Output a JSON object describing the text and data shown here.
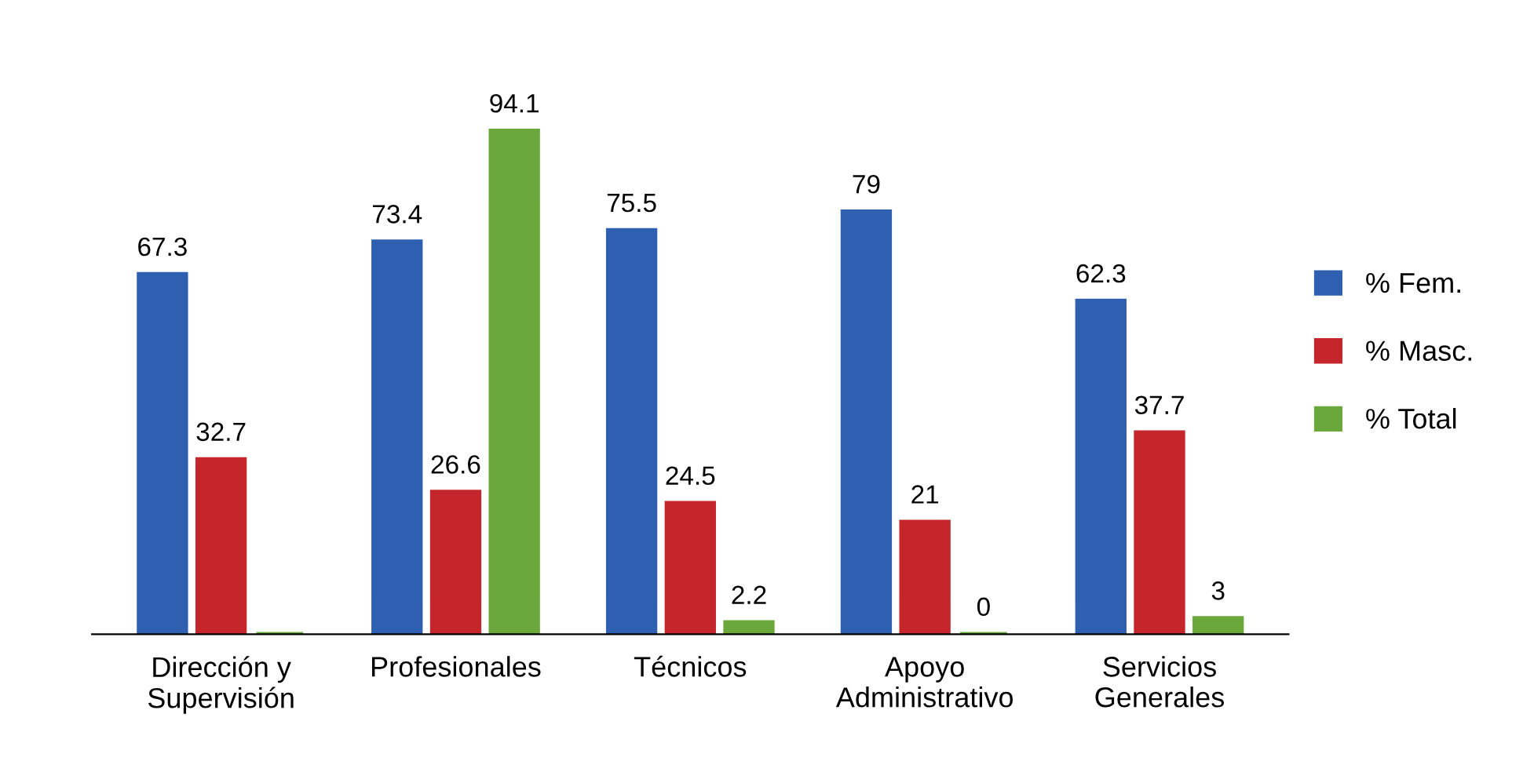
{
  "chart_data": {
    "type": "bar",
    "categories": [
      "Dirección y\nSupervisión",
      "Profesionales",
      "Técnicos",
      "Apoyo\nAdministrativo",
      "Servicios\nGenerales"
    ],
    "series": [
      {
        "name": "% Fem.",
        "color": "#2f5fb0",
        "values": [
          67.3,
          73.4,
          75.5,
          79,
          62.3
        ],
        "value_labels": [
          "67.3",
          "73.4",
          "75.5",
          "79",
          "62.3"
        ]
      },
      {
        "name": "% Masc.",
        "color": "#c4262c",
        "values": [
          32.7,
          26.6,
          24.5,
          21,
          37.7
        ],
        "value_labels": [
          "32.7",
          "26.6",
          "24.5",
          "21",
          "37.7"
        ]
      },
      {
        "name": "% Total",
        "color": "#6aa83b",
        "values": [
          0,
          94.1,
          2.2,
          0,
          3
        ],
        "value_labels": [
          null,
          "94.1",
          "2.2",
          "0",
          "3"
        ]
      }
    ],
    "legend": "right",
    "grid": false
  }
}
